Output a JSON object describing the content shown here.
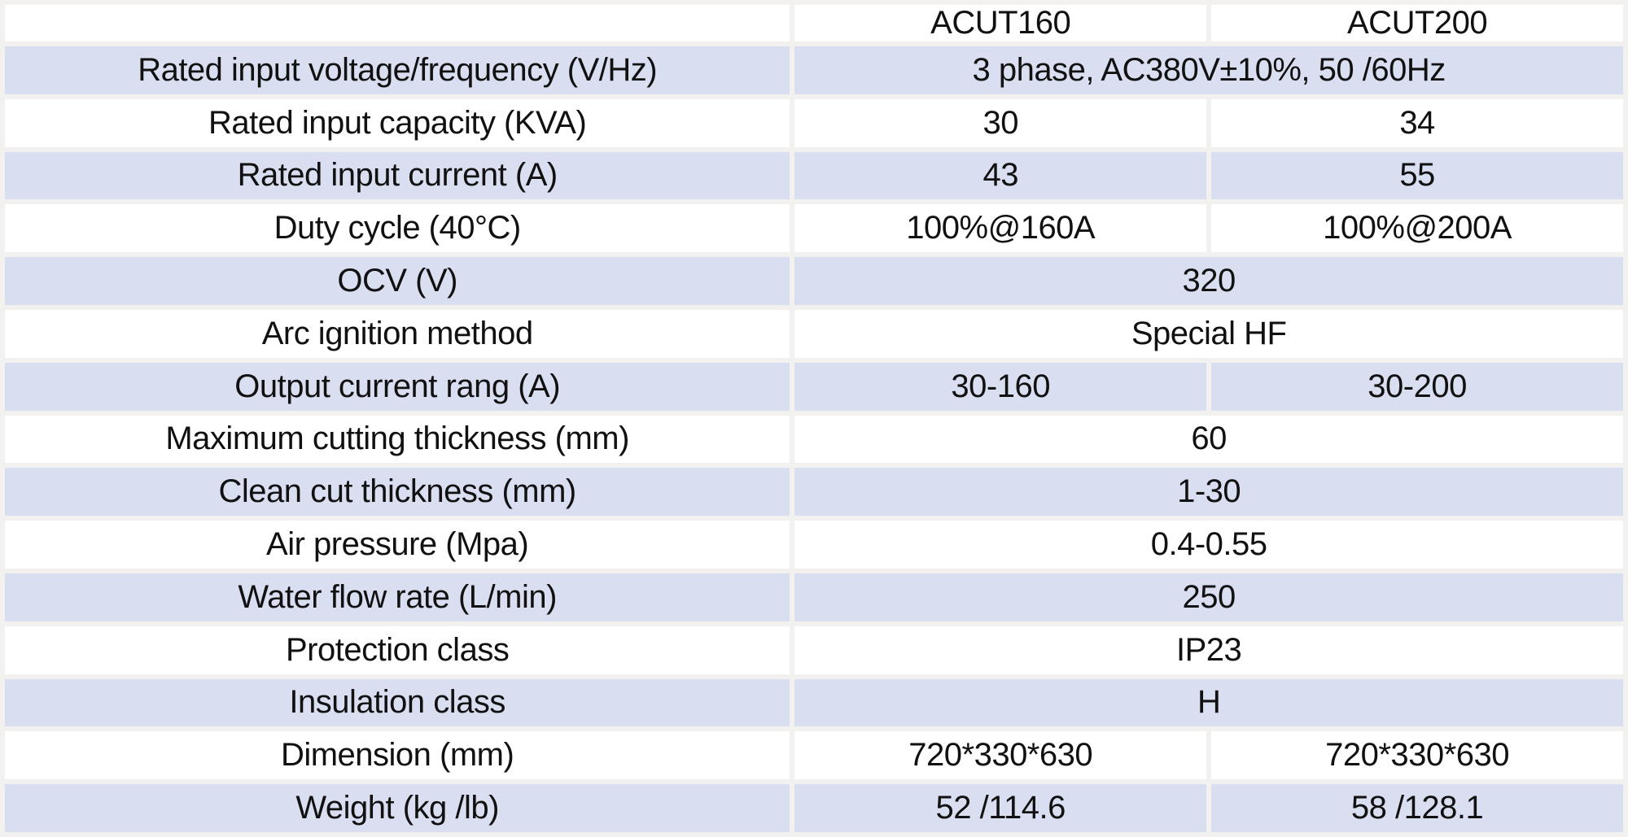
{
  "table": {
    "columns": [
      "",
      "ACUT160",
      "ACUT200"
    ],
    "rows": [
      {
        "label": "Rated input voltage/frequency (V/Hz)",
        "merged": true,
        "values": [
          "3 phase, AC380V±10%, 50 /60Hz"
        ]
      },
      {
        "label": "Rated input capacity (KVA)",
        "merged": false,
        "values": [
          "30",
          "34"
        ]
      },
      {
        "label": "Rated input current (A)",
        "merged": false,
        "values": [
          "43",
          "55"
        ]
      },
      {
        "label": "Duty cycle (40°C)",
        "merged": false,
        "values": [
          "100%@160A",
          "100%@200A"
        ]
      },
      {
        "label": "OCV (V)",
        "merged": true,
        "values": [
          "320"
        ]
      },
      {
        "label": "Arc ignition method",
        "merged": true,
        "values": [
          "Special HF"
        ]
      },
      {
        "label": "Output current rang (A)",
        "merged": false,
        "values": [
          "30-160",
          "30-200"
        ]
      },
      {
        "label": "Maximum cutting thickness (mm)",
        "merged": true,
        "values": [
          "60"
        ]
      },
      {
        "label": "Clean cut thickness (mm)",
        "merged": true,
        "values": [
          "1-30"
        ]
      },
      {
        "label": "Air pressure (Mpa)",
        "merged": true,
        "values": [
          "0.4-0.55"
        ]
      },
      {
        "label": "Water flow rate (L/min)",
        "merged": true,
        "values": [
          "250"
        ]
      },
      {
        "label": "Protection class",
        "merged": true,
        "values": [
          "IP23"
        ]
      },
      {
        "label": "Insulation class",
        "merged": true,
        "values": [
          "H"
        ]
      },
      {
        "label": "Dimension (mm)",
        "merged": false,
        "values": [
          "720*330*630",
          "720*330*630"
        ]
      },
      {
        "label": "Weight (kg /lb)",
        "merged": false,
        "values": [
          "52 /114.6",
          "58 /128.1"
        ]
      }
    ],
    "colors": {
      "band_fill": "#d9def0",
      "grid_gap": "#f2f1f0",
      "cell_fill": "#ffffff",
      "text": "#111111"
    }
  }
}
